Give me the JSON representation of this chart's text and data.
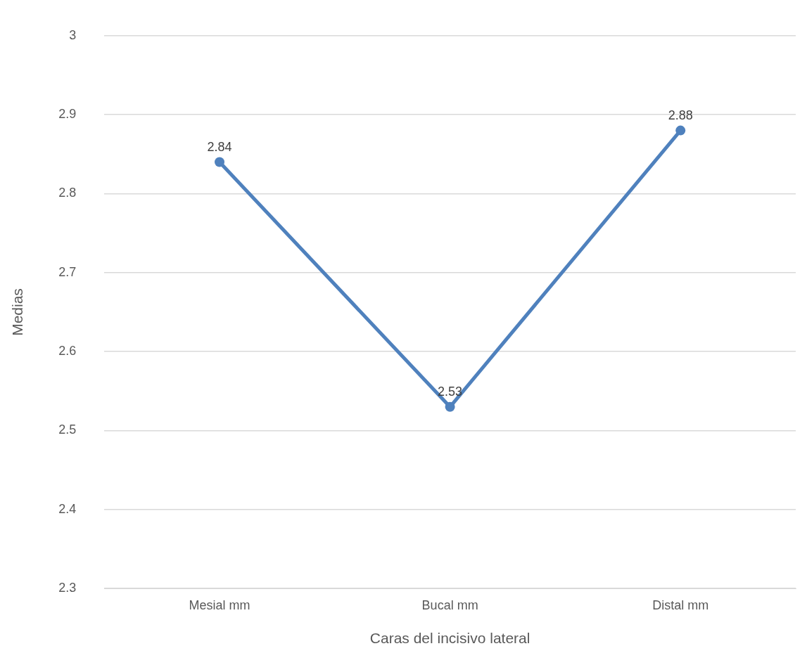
{
  "chart_data": {
    "type": "line",
    "xlabel": "Caras del incisivo lateral",
    "ylabel": "Medias",
    "categories": [
      "Mesial mm",
      "Bucal mm",
      "Distal mm"
    ],
    "series": [
      {
        "color": "#4f81bd",
        "values": [
          2.84,
          2.53,
          2.88
        ]
      }
    ],
    "ylim": [
      2.3,
      3
    ],
    "yticks": [
      2.3,
      2.4,
      2.5,
      2.6,
      2.7,
      2.8,
      2.9,
      3
    ],
    "grid": "y",
    "legend": false,
    "marker": "circle",
    "line_style": "solid",
    "data_labels": true
  }
}
